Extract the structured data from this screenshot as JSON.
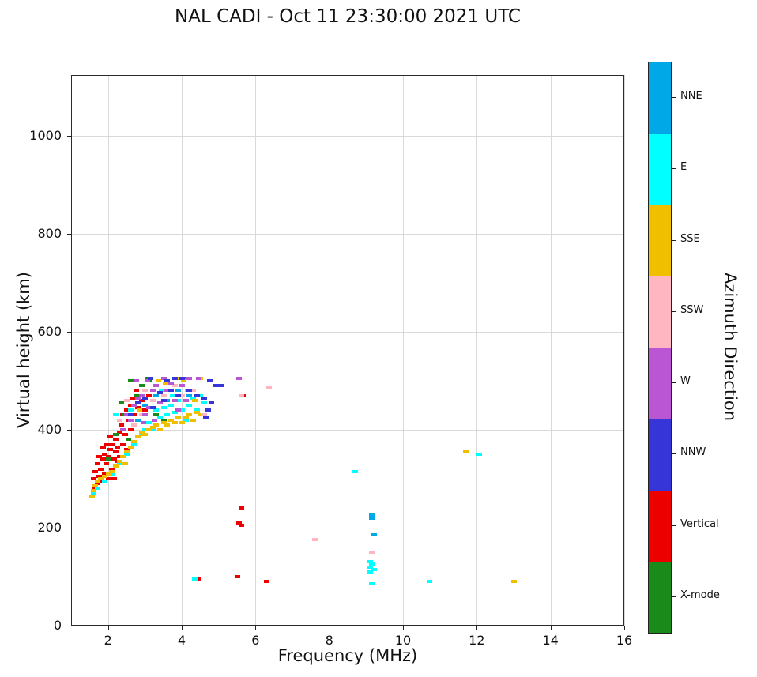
{
  "title": "NAL CADI - Oct 11 23:30:00 2021 UTC",
  "chart_data": {
    "type": "scatter",
    "title": "NAL CADI - Oct 11 23:30:00 2021 UTC",
    "xlabel": "Frequency (MHz)",
    "ylabel": "Virtual height (km)",
    "colorbar_label": "Azimuth Direction",
    "xlim": [
      1,
      16
    ],
    "ylim": [
      0,
      1124
    ],
    "x_ticks": [
      2,
      4,
      6,
      8,
      10,
      12,
      14,
      16
    ],
    "y_ticks": [
      0,
      200,
      400,
      600,
      800,
      1000
    ],
    "grid": true,
    "legend_position": "right-colorbar",
    "legend": [
      {
        "label": "NNE",
        "color": "#00a8e8"
      },
      {
        "label": "E",
        "color": "#00ffff"
      },
      {
        "label": "SSE",
        "color": "#f0c000"
      },
      {
        "label": "SSW",
        "color": "#ffb6c1"
      },
      {
        "label": "W",
        "color": "#ba55d3"
      },
      {
        "label": "NNW",
        "color": "#3535d8"
      },
      {
        "label": "Vertical",
        "color": "#ed0000"
      },
      {
        "label": "X-mode",
        "color": "#1a8a1a"
      }
    ],
    "series": [
      {
        "name": "Vertical",
        "color": "#ed0000",
        "points": [
          [
            1.6,
            300
          ],
          [
            1.65,
            315
          ],
          [
            1.65,
            280
          ],
          [
            1.7,
            290
          ],
          [
            1.7,
            330
          ],
          [
            1.75,
            305
          ],
          [
            1.75,
            345
          ],
          [
            1.8,
            320
          ],
          [
            1.8,
            295
          ],
          [
            1.85,
            340
          ],
          [
            1.85,
            365
          ],
          [
            1.9,
            310
          ],
          [
            1.9,
            350
          ],
          [
            1.95,
            330
          ],
          [
            1.95,
            370
          ],
          [
            2.0,
            345
          ],
          [
            2.0,
            300
          ],
          [
            2.05,
            360
          ],
          [
            2.05,
            385
          ],
          [
            2.1,
            320
          ],
          [
            2.1,
            370
          ],
          [
            2.15,
            340
          ],
          [
            2.15,
            300
          ],
          [
            2.2,
            355
          ],
          [
            2.2,
            380
          ],
          [
            2.25,
            365
          ],
          [
            2.25,
            335
          ],
          [
            2.3,
            345
          ],
          [
            2.3,
            395
          ],
          [
            2.35,
            410
          ],
          [
            2.4,
            370
          ],
          [
            2.4,
            430
          ],
          [
            2.45,
            390
          ],
          [
            2.5,
            440
          ],
          [
            2.5,
            360
          ],
          [
            2.55,
            420
          ],
          [
            2.6,
            450
          ],
          [
            2.6,
            400
          ],
          [
            2.65,
            465
          ],
          [
            2.7,
            430
          ],
          [
            2.75,
            480
          ],
          [
            2.8,
            445
          ],
          [
            2.9,
            460
          ],
          [
            3.0,
            440
          ],
          [
            3.1,
            470
          ],
          [
            4.45,
            95
          ],
          [
            5.5,
            100
          ],
          [
            5.55,
            210
          ],
          [
            5.6,
            240
          ],
          [
            5.6,
            205
          ],
          [
            5.65,
            470
          ],
          [
            6.3,
            90
          ]
        ]
      },
      {
        "name": "X-mode",
        "color": "#1a8a1a",
        "points": [
          [
            2.0,
            340
          ],
          [
            2.2,
            390
          ],
          [
            2.35,
            455
          ],
          [
            2.45,
            430
          ],
          [
            2.55,
            380
          ],
          [
            2.6,
            500
          ],
          [
            2.75,
            470
          ],
          [
            2.9,
            490
          ],
          [
            3.05,
            505
          ],
          [
            3.1,
            500
          ],
          [
            3.3,
            430
          ],
          [
            3.5,
            420
          ],
          [
            4.1,
            505
          ]
        ]
      },
      {
        "name": "E",
        "color": "#00ffff",
        "points": [
          [
            1.6,
            270
          ],
          [
            1.7,
            280
          ],
          [
            1.9,
            295
          ],
          [
            2.1,
            310
          ],
          [
            2.2,
            430
          ],
          [
            2.3,
            330
          ],
          [
            2.5,
            350
          ],
          [
            2.6,
            440
          ],
          [
            2.7,
            370
          ],
          [
            2.9,
            390
          ],
          [
            3.0,
            400
          ],
          [
            3.1,
            415
          ],
          [
            3.2,
            400
          ],
          [
            3.3,
            440
          ],
          [
            3.4,
            425
          ],
          [
            3.45,
            480
          ],
          [
            3.5,
            445
          ],
          [
            3.6,
            430
          ],
          [
            3.7,
            450
          ],
          [
            3.75,
            470
          ],
          [
            3.8,
            435
          ],
          [
            3.9,
            460
          ],
          [
            4.0,
            440
          ],
          [
            4.1,
            420
          ],
          [
            4.15,
            480
          ],
          [
            4.2,
            450
          ],
          [
            4.3,
            465
          ],
          [
            4.4,
            440
          ],
          [
            4.5,
            470
          ],
          [
            4.6,
            455
          ],
          [
            4.35,
            95
          ],
          [
            8.7,
            315
          ],
          [
            9.1,
            130
          ],
          [
            9.15,
            125
          ],
          [
            9.1,
            120
          ],
          [
            9.2,
            115
          ],
          [
            9.1,
            110
          ],
          [
            9.15,
            85
          ],
          [
            10.7,
            90
          ],
          [
            12.05,
            350
          ]
        ]
      },
      {
        "name": "NNE",
        "color": "#00a8e8",
        "points": [
          [
            2.8,
            420
          ],
          [
            3.0,
            450
          ],
          [
            3.3,
            470
          ],
          [
            3.6,
            460
          ],
          [
            3.9,
            480
          ],
          [
            4.2,
            470
          ],
          [
            9.15,
            225
          ],
          [
            9.15,
            220
          ],
          [
            9.2,
            185
          ]
        ]
      },
      {
        "name": "SSE",
        "color": "#f0c000",
        "points": [
          [
            1.55,
            265
          ],
          [
            1.6,
            275
          ],
          [
            1.65,
            285
          ],
          [
            1.7,
            295
          ],
          [
            1.8,
            300
          ],
          [
            1.9,
            305
          ],
          [
            2.0,
            310
          ],
          [
            2.1,
            315
          ],
          [
            2.2,
            325
          ],
          [
            2.3,
            335
          ],
          [
            2.4,
            345
          ],
          [
            2.45,
            330
          ],
          [
            2.5,
            355
          ],
          [
            2.6,
            365
          ],
          [
            2.7,
            375
          ],
          [
            2.8,
            385
          ],
          [
            2.85,
            440
          ],
          [
            2.9,
            395
          ],
          [
            3.0,
            390
          ],
          [
            3.1,
            400
          ],
          [
            3.2,
            405
          ],
          [
            3.3,
            410
          ],
          [
            3.35,
            500
          ],
          [
            3.4,
            400
          ],
          [
            3.5,
            415
          ],
          [
            3.55,
            495
          ],
          [
            3.6,
            410
          ],
          [
            3.7,
            420
          ],
          [
            3.8,
            415
          ],
          [
            3.9,
            425
          ],
          [
            3.9,
            505
          ],
          [
            4.0,
            415
          ],
          [
            4.05,
            500
          ],
          [
            4.1,
            425
          ],
          [
            4.2,
            430
          ],
          [
            4.3,
            420
          ],
          [
            4.35,
            460
          ],
          [
            4.4,
            435
          ],
          [
            4.5,
            430
          ],
          [
            4.5,
            505
          ],
          [
            11.7,
            355
          ],
          [
            13.0,
            90
          ]
        ]
      },
      {
        "name": "SSW",
        "color": "#ffb6c1",
        "points": [
          [
            2.3,
            420
          ],
          [
            2.5,
            460
          ],
          [
            2.7,
            410
          ],
          [
            2.9,
            430
          ],
          [
            3.0,
            480
          ],
          [
            3.2,
            460
          ],
          [
            3.5,
            470
          ],
          [
            3.8,
            490
          ],
          [
            4.0,
            470
          ],
          [
            4.3,
            480
          ],
          [
            4.6,
            430
          ],
          [
            5.6,
            470
          ],
          [
            6.35,
            485
          ],
          [
            7.6,
            175
          ],
          [
            9.15,
            150
          ]
        ]
      },
      {
        "name": "W",
        "color": "#ba55d3",
        "points": [
          [
            2.4,
            400
          ],
          [
            2.5,
            430
          ],
          [
            2.6,
            420
          ],
          [
            2.7,
            450
          ],
          [
            2.75,
            500
          ],
          [
            2.8,
            465
          ],
          [
            2.9,
            470
          ],
          [
            2.95,
            415
          ],
          [
            3.0,
            430
          ],
          [
            3.05,
            500
          ],
          [
            3.1,
            445
          ],
          [
            3.2,
            480
          ],
          [
            3.25,
            420
          ],
          [
            3.3,
            490
          ],
          [
            3.4,
            455
          ],
          [
            3.5,
            505
          ],
          [
            3.6,
            480
          ],
          [
            3.7,
            495
          ],
          [
            3.8,
            460
          ],
          [
            3.9,
            440
          ],
          [
            4.0,
            490
          ],
          [
            4.1,
            460
          ],
          [
            4.2,
            505
          ],
          [
            4.45,
            505
          ],
          [
            5.55,
            505
          ]
        ]
      },
      {
        "name": "NNW",
        "color": "#3535d8",
        "points": [
          [
            2.6,
            430
          ],
          [
            2.8,
            455
          ],
          [
            3.0,
            465
          ],
          [
            3.15,
            505
          ],
          [
            3.2,
            445
          ],
          [
            3.4,
            475
          ],
          [
            3.5,
            460
          ],
          [
            3.6,
            500
          ],
          [
            3.7,
            480
          ],
          [
            3.8,
            505
          ],
          [
            3.9,
            470
          ],
          [
            4.0,
            505
          ],
          [
            4.2,
            480
          ],
          [
            4.4,
            470
          ],
          [
            4.6,
            465
          ],
          [
            4.65,
            425
          ],
          [
            4.7,
            440
          ],
          [
            4.75,
            500
          ],
          [
            4.8,
            455
          ],
          [
            4.9,
            490
          ],
          [
            5.0,
            490
          ],
          [
            5.05,
            490
          ]
        ]
      }
    ]
  }
}
